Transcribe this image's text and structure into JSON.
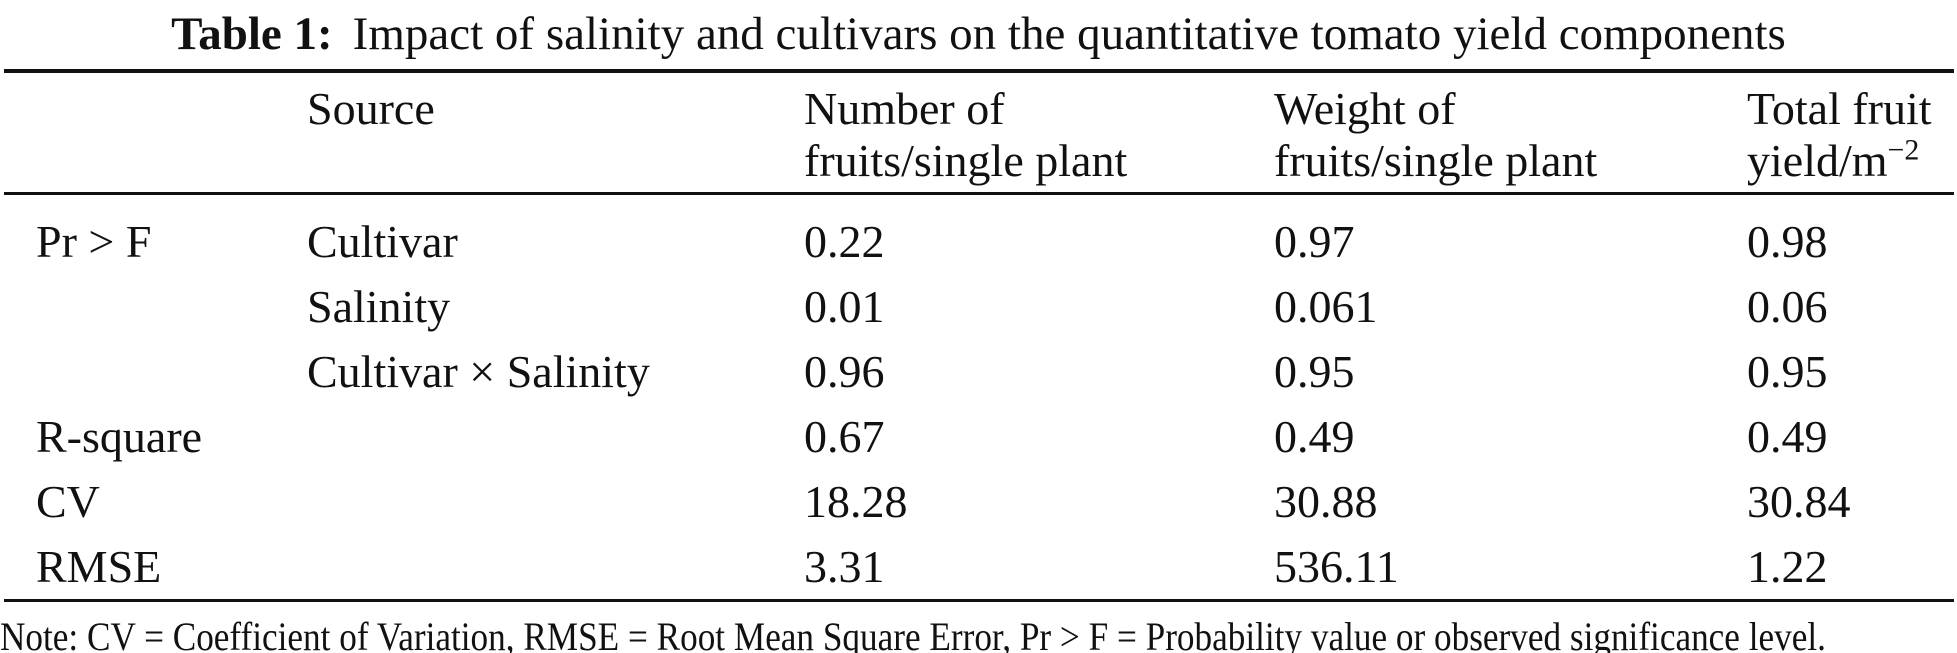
{
  "page": {
    "background_color": "#ffffff",
    "text_color": "#111111"
  },
  "caption": {
    "label": "Table 1:",
    "text": "Impact of salinity and cultivars on the quantitative tomato yield components"
  },
  "table": {
    "header": {
      "stub": "",
      "source": "Source",
      "number_line1": "Number of",
      "number_line2": "fruits/single plant",
      "weight_line1": "Weight of",
      "weight_line2": "fruits/single plant",
      "total_line1": "Total fruit",
      "total_line2_base": "yield/m",
      "total_line2_sup": "−2"
    },
    "rows": [
      {
        "stub": "Pr > F",
        "source": "Cultivar",
        "number": "0.22",
        "weight": "0.97",
        "total": "0.98"
      },
      {
        "stub": "",
        "source": "Salinity",
        "number": "0.01",
        "weight": "0.061",
        "total": "0.06"
      },
      {
        "stub": "",
        "source": "Cultivar × Salinity",
        "number": "0.96",
        "weight": "0.95",
        "total": "0.95"
      },
      {
        "stub": "R-square",
        "source": "",
        "number": "0.67",
        "weight": "0.49",
        "total": "0.49"
      },
      {
        "stub": "CV",
        "source": "",
        "number": "18.28",
        "weight": "30.88",
        "total": "30.84"
      },
      {
        "stub": "RMSE",
        "source": "",
        "number": "3.31",
        "weight": "536.11",
        "total": "1.22"
      }
    ]
  },
  "note": "Note: CV = Coefficient of Variation, RMSE = Root Mean Square Error, Pr > F = Probability value or observed significance level."
}
